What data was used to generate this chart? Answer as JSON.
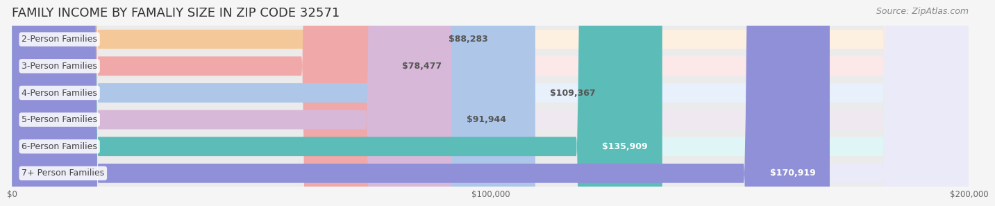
{
  "title": "FAMILY INCOME BY FAMALIY SIZE IN ZIP CODE 32571",
  "source": "Source: ZipAtlas.com",
  "categories": [
    "2-Person Families",
    "3-Person Families",
    "4-Person Families",
    "5-Person Families",
    "6-Person Families",
    "7+ Person Families"
  ],
  "values": [
    88283,
    78477,
    109367,
    91944,
    135909,
    170919
  ],
  "bar_colors": [
    "#f5c89a",
    "#f0a8a8",
    "#aec6e8",
    "#d8b8d8",
    "#5bbcb8",
    "#9090d8"
  ],
  "bar_bg_colors": [
    "#fdf0e0",
    "#fce8e8",
    "#e8f0fc",
    "#f0e8f0",
    "#e0f5f5",
    "#eaeaf8"
  ],
  "label_colors": [
    "#888888",
    "#888888",
    "#888888",
    "#888888",
    "#ffffff",
    "#ffffff"
  ],
  "value_labels": [
    "$88,283",
    "$78,477",
    "$109,367",
    "$91,944",
    "$135,909",
    "$170,919"
  ],
  "xlim": [
    0,
    200000
  ],
  "xticks": [
    0,
    100000,
    200000
  ],
  "xtick_labels": [
    "$0",
    "$100,000",
    "$200,000"
  ],
  "title_fontsize": 13,
  "source_fontsize": 9,
  "bar_label_fontsize": 9,
  "value_fontsize": 9,
  "background_color": "#f5f5f5",
  "bar_area_bg": "#ebebeb"
}
